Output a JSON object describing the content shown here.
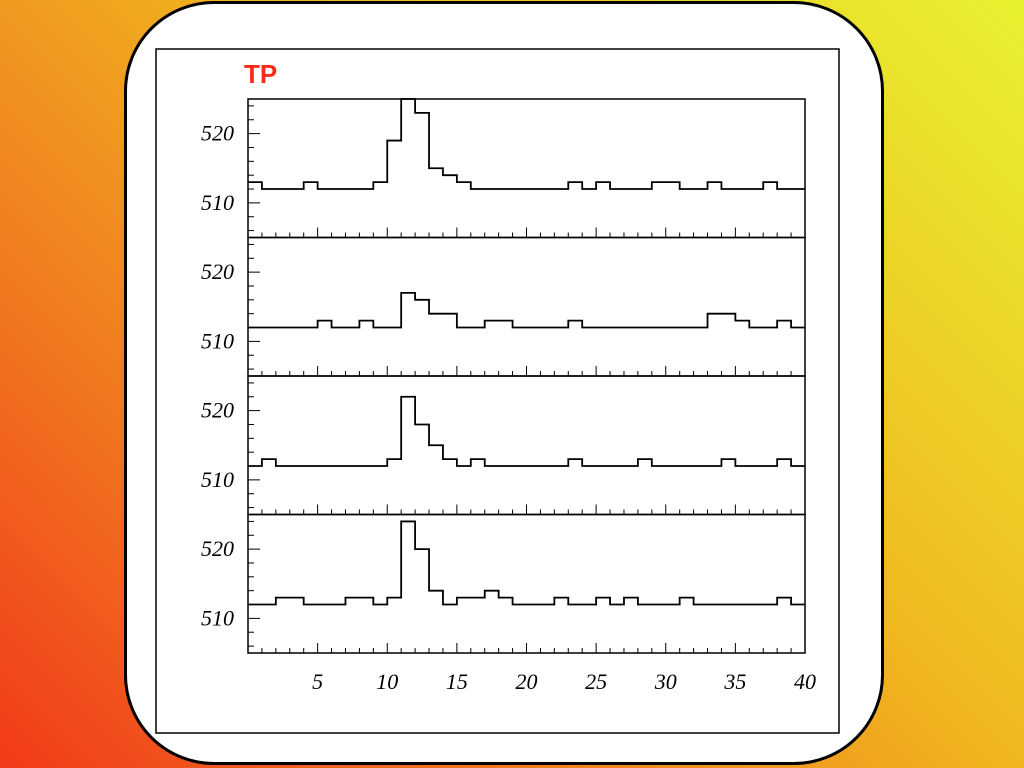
{
  "colors": {
    "title": "#ff2a1a",
    "line": "#000000",
    "card_bg": "#ffffff"
  },
  "chart_data": {
    "type": "line",
    "title": "TP",
    "layout": "four stacked panels sharing x axis",
    "step_style": "histogram steps",
    "x_bin_edges_start": 0,
    "xlim": [
      0,
      40
    ],
    "x_ticks": [
      5,
      10,
      15,
      20,
      25,
      30,
      35,
      40
    ],
    "x_tick_labels": [
      "5",
      "10",
      "15",
      "20",
      "25",
      "30",
      "35",
      "40"
    ],
    "ylim": [
      505,
      525
    ],
    "y_ticks": [
      510,
      520
    ],
    "y_tick_labels": [
      "510",
      "520"
    ],
    "grid": false,
    "panels": [
      {
        "values": [
          513,
          512,
          512,
          512,
          513,
          512,
          512,
          512,
          512,
          513,
          519,
          525,
          523,
          515,
          514,
          513,
          512,
          512,
          512,
          512,
          512,
          512,
          512,
          513,
          512,
          513,
          512,
          512,
          512,
          513,
          513,
          512,
          512,
          513,
          512,
          512,
          512,
          513,
          512,
          512
        ]
      },
      {
        "values": [
          512,
          512,
          512,
          512,
          512,
          513,
          512,
          512,
          513,
          512,
          512,
          517,
          516,
          514,
          514,
          512,
          512,
          513,
          513,
          512,
          512,
          512,
          512,
          513,
          512,
          512,
          512,
          512,
          512,
          512,
          512,
          512,
          512,
          514,
          514,
          513,
          512,
          512,
          513,
          512
        ]
      },
      {
        "values": [
          512,
          513,
          512,
          512,
          512,
          512,
          512,
          512,
          512,
          512,
          513,
          522,
          518,
          515,
          513,
          512,
          513,
          512,
          512,
          512,
          512,
          512,
          512,
          513,
          512,
          512,
          512,
          512,
          513,
          512,
          512,
          512,
          512,
          512,
          513,
          512,
          512,
          512,
          513,
          512
        ]
      },
      {
        "values": [
          512,
          512,
          513,
          513,
          512,
          512,
          512,
          513,
          513,
          512,
          513,
          524,
          520,
          514,
          512,
          513,
          513,
          514,
          513,
          512,
          512,
          512,
          513,
          512,
          512,
          513,
          512,
          513,
          512,
          512,
          512,
          513,
          512,
          512,
          512,
          512,
          512,
          512,
          513,
          512
        ]
      }
    ]
  }
}
